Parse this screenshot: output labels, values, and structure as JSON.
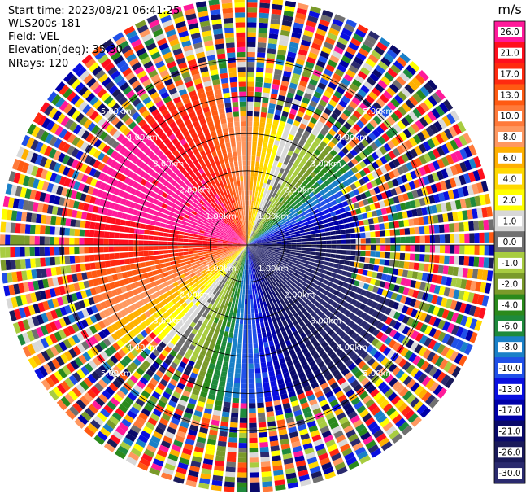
{
  "info": {
    "start_time": "Start time: 2023/08/21 06:41:25",
    "instrument": "WLS200s-181",
    "field": "Field: VEL",
    "elevation": "Elevation(deg): 35.30",
    "nrays": "NRays: 120"
  },
  "chart_data": {
    "type": "heatmap",
    "projection": "polar PPI",
    "field": "VEL",
    "units": "m/s",
    "nrays": 120,
    "range_rings_km": [
      1.0,
      2.0,
      3.0,
      4.0,
      5.0
    ],
    "range_ring_labels": [
      "1.00km",
      "2.00km",
      "3.00km",
      "4.00km",
      "5.00km"
    ],
    "max_range_km": 5.0,
    "colorbar": {
      "unit_label": "m/s",
      "ticks": [
        "26.0",
        "21.0",
        "17.0",
        "13.0",
        "10.0",
        "8.0",
        "6.0",
        "4.0",
        "2.0",
        "1.0",
        "0.0",
        "-1.0",
        "-2.0",
        "-4.0",
        "-6.0",
        "-8.0",
        "-10.0",
        "-13.0",
        "-17.0",
        "-21.0",
        "-26.0",
        "-30.0"
      ],
      "colors": [
        "#ff1a9a",
        "#ff0f1e",
        "#ff2a10",
        "#ff5a12",
        "#ff7a3a",
        "#ff9860",
        "#ffb000",
        "#ffd800",
        "#ffff00",
        "#d8d8d8",
        "#707070",
        "#a8cc40",
        "#7a9a2a",
        "#2a8a1c",
        "#1e8a3c",
        "#1a80c8",
        "#2050e8",
        "#0a10e0",
        "#0000a8",
        "#0a0a6a",
        "#1a1a5a",
        "#2a2a6e"
      ]
    }
  }
}
